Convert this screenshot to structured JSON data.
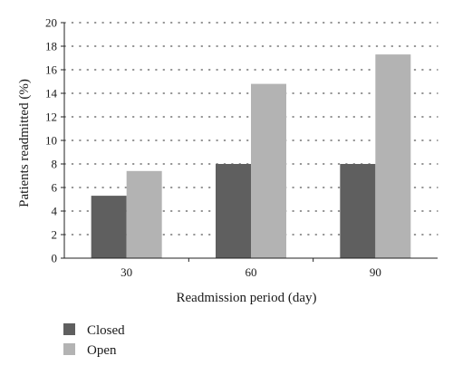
{
  "chart_data": {
    "type": "bar",
    "categories": [
      "30",
      "60",
      "90"
    ],
    "series": [
      {
        "name": "Closed",
        "values": [
          5.3,
          8.0,
          8.0
        ],
        "color": "#5f5f5f"
      },
      {
        "name": "Open",
        "values": [
          7.4,
          14.8,
          17.3
        ],
        "color": "#b3b3b3"
      }
    ],
    "xlabel": "Readmission period (day)",
    "ylabel": "Patients readmitted (%)",
    "ylim": [
      0,
      20
    ],
    "yticks": [
      "0",
      "2",
      "4",
      "6",
      "8",
      "10",
      "12",
      "14",
      "16",
      "18",
      "20"
    ],
    "grid": "dotted horizontal",
    "legend_position": "bottom-left"
  }
}
